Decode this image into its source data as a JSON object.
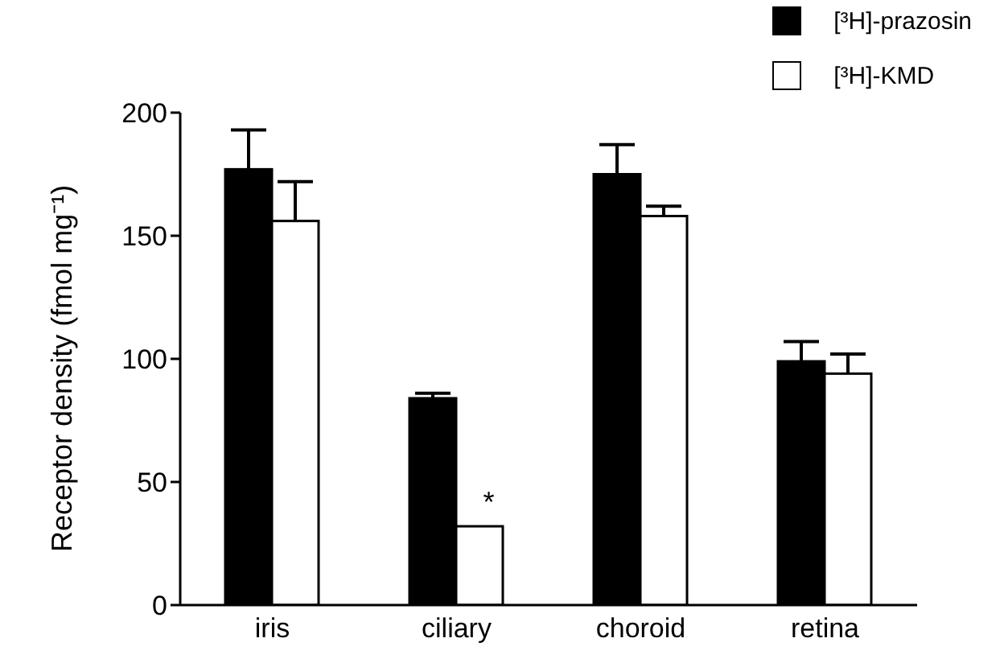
{
  "chart_data": {
    "type": "bar",
    "ylabel": "Receptor density (fmol mg⁻¹)",
    "categories": [
      "iris",
      "ciliary",
      "choroid",
      "retina"
    ],
    "series": [
      {
        "name": "[³H]-prazosin",
        "color": "#000000",
        "values": [
          177,
          84,
          175,
          99
        ],
        "errors": [
          [
            177,
            193
          ],
          [
            84,
            86
          ],
          [
            175,
            187
          ],
          [
            99,
            107
          ]
        ]
      },
      {
        "name": "[³H]-KMD",
        "color": "#ffffff",
        "values": [
          156,
          32,
          158,
          94
        ],
        "errors": [
          [
            156,
            172
          ],
          null,
          [
            158,
            162
          ],
          [
            94,
            102
          ]
        ]
      }
    ],
    "ylim": [
      0,
      200
    ],
    "yticks": [
      0,
      50,
      100,
      150,
      200
    ],
    "grid": false,
    "legend": "top right",
    "annotations": [
      {
        "text": "*",
        "x": "ciliary",
        "y": 42
      }
    ]
  }
}
